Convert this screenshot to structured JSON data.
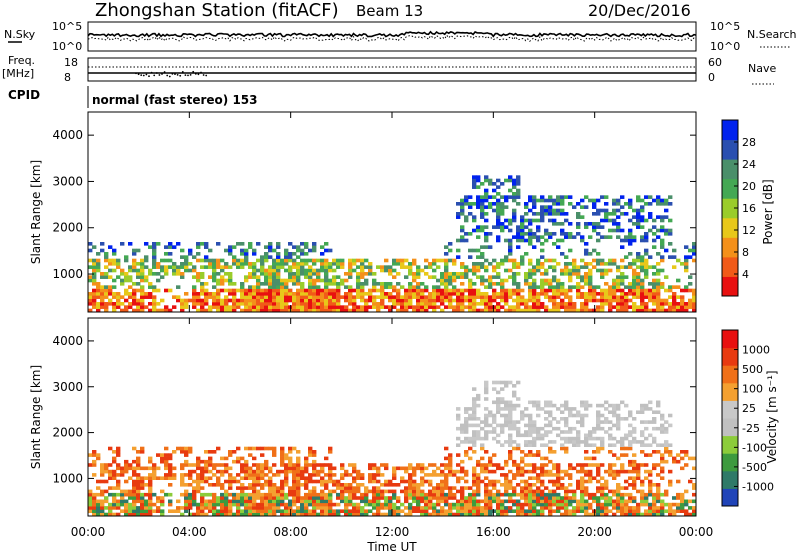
{
  "header": {
    "station": "Zhongshan Station (fitACF)",
    "beam": "Beam 13",
    "date": "20/Dec/2016"
  },
  "aux_panels": {
    "nsky_label": "N.Sky",
    "nsky_ticks": [
      "10^5",
      "10^0"
    ],
    "nsearch_label": "N.Search",
    "nsearch_ticks": [
      "10^5",
      "10^0"
    ],
    "freq_label_1": "Freq.",
    "freq_label_2": "[MHz]",
    "freq_ticks": [
      "18",
      "8"
    ],
    "nave_label": "Nave",
    "nave_ticks": [
      "60",
      "0"
    ],
    "cpid_label": "CPID",
    "cpid_value": "normal (fast stereo) 153"
  },
  "colors": {
    "power_scale": [
      "#0022ee",
      "#2a4fb0",
      "#4a8f6a",
      "#44a853",
      "#9acc2a",
      "#e8c81a",
      "#f4901a",
      "#f15a18",
      "#e81010"
    ],
    "velocity_scale": [
      "#2044b8",
      "#2f7a68",
      "#3d9a3e",
      "#8ccc3a",
      "#c0c0c0",
      "#c8c8c8",
      "#f4a030",
      "#f07018",
      "#e83a10",
      "#e81010"
    ]
  },
  "chart_data": [
    {
      "type": "heatmap",
      "panel": "power",
      "ylabel": "Slant Range [km]",
      "ylim": [
        180,
        4500
      ],
      "yticks": [
        "4000",
        "3000",
        "2000",
        "1000"
      ],
      "xticks": [
        "00:00",
        "04:00",
        "08:00",
        "12:00",
        "16:00",
        "20:00",
        "00:00"
      ],
      "colorbar_label": "Power [dB]",
      "colorbar_ticks": [
        "28",
        "24",
        "20",
        "16",
        "12",
        "8",
        "4"
      ],
      "colorbar_range": [
        0,
        32
      ]
    },
    {
      "type": "heatmap",
      "panel": "velocity",
      "xlabel": "Time UT",
      "ylabel": "Slant Range [km]",
      "ylim": [
        180,
        4500
      ],
      "yticks": [
        "4000",
        "3000",
        "2000",
        "1000"
      ],
      "xticks": [
        "00:00",
        "04:00",
        "08:00",
        "12:00",
        "16:00",
        "20:00",
        "00:00"
      ],
      "colorbar_label": "Velocity [m s⁻¹]",
      "colorbar_ticks": [
        "1000",
        "500",
        "100",
        "25",
        "-25",
        "-100",
        "-500",
        "-1000"
      ]
    }
  ]
}
